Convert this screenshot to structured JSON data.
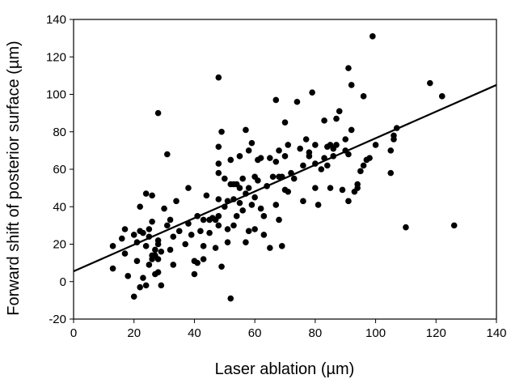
{
  "chart_data": {
    "type": "scatter",
    "title": "",
    "xlabel": "Laser ablation (µm)",
    "ylabel": "Forward shift of posterior surface (µm)",
    "xlim": [
      0,
      140
    ],
    "ylim": [
      -20,
      140
    ],
    "x_ticks": [
      0,
      20,
      40,
      60,
      80,
      100,
      120,
      140
    ],
    "y_ticks": [
      -20,
      0,
      20,
      40,
      60,
      80,
      100,
      120,
      140
    ],
    "grid": false,
    "legend": "none",
    "marker_color": "#000000",
    "trendline": {
      "x": [
        0,
        140
      ],
      "y": [
        5.5,
        105
      ]
    },
    "points": [
      [
        13,
        19
      ],
      [
        13,
        7
      ],
      [
        16,
        23
      ],
      [
        17,
        28
      ],
      [
        17,
        15
      ],
      [
        18,
        3
      ],
      [
        20,
        -8
      ],
      [
        20,
        25
      ],
      [
        21,
        21
      ],
      [
        21,
        11
      ],
      [
        22,
        27
      ],
      [
        22,
        -3
      ],
      [
        22,
        40
      ],
      [
        23,
        26
      ],
      [
        23,
        2
      ],
      [
        24,
        47
      ],
      [
        24,
        -2
      ],
      [
        24,
        19
      ],
      [
        25,
        24
      ],
      [
        25,
        9
      ],
      [
        25,
        28
      ],
      [
        26,
        14
      ],
      [
        26,
        12
      ],
      [
        26,
        32
      ],
      [
        26,
        46
      ],
      [
        27,
        4
      ],
      [
        27,
        17
      ],
      [
        27,
        14
      ],
      [
        28,
        90
      ],
      [
        28,
        5
      ],
      [
        28,
        20
      ],
      [
        28,
        22
      ],
      [
        28,
        12
      ],
      [
        29,
        -2
      ],
      [
        29,
        16
      ],
      [
        30,
        39
      ],
      [
        31,
        68
      ],
      [
        31,
        30
      ],
      [
        32,
        33
      ],
      [
        32,
        17
      ],
      [
        33,
        24
      ],
      [
        33,
        9
      ],
      [
        34,
        43
      ],
      [
        35,
        27
      ],
      [
        37,
        20
      ],
      [
        38,
        50
      ],
      [
        38,
        31
      ],
      [
        39,
        25
      ],
      [
        40,
        4
      ],
      [
        40,
        11
      ],
      [
        41,
        10
      ],
      [
        41,
        35
      ],
      [
        42,
        27
      ],
      [
        43,
        19
      ],
      [
        43,
        33
      ],
      [
        43,
        12
      ],
      [
        44,
        46
      ],
      [
        45,
        33
      ],
      [
        45,
        26
      ],
      [
        46,
        34
      ],
      [
        47,
        33
      ],
      [
        47,
        18
      ],
      [
        48,
        109
      ],
      [
        48,
        72
      ],
      [
        48,
        63
      ],
      [
        48,
        58
      ],
      [
        48,
        44
      ],
      [
        48,
        35
      ],
      [
        48,
        30
      ],
      [
        49,
        80
      ],
      [
        49,
        8
      ],
      [
        50,
        55
      ],
      [
        50,
        40
      ],
      [
        51,
        43
      ],
      [
        51,
        28
      ],
      [
        51,
        21
      ],
      [
        52,
        65
      ],
      [
        52,
        52
      ],
      [
        52,
        -9
      ],
      [
        53,
        52
      ],
      [
        53,
        44
      ],
      [
        53,
        30
      ],
      [
        54,
        52
      ],
      [
        54,
        35
      ],
      [
        55,
        67
      ],
      [
        55,
        50
      ],
      [
        55,
        42
      ],
      [
        56,
        55
      ],
      [
        56,
        38
      ],
      [
        57,
        81
      ],
      [
        57,
        47
      ],
      [
        57,
        21
      ],
      [
        58,
        70
      ],
      [
        58,
        50
      ],
      [
        58,
        27
      ],
      [
        59,
        74
      ],
      [
        59,
        41
      ],
      [
        60,
        56
      ],
      [
        60,
        45
      ],
      [
        60,
        28
      ],
      [
        61,
        65
      ],
      [
        61,
        54
      ],
      [
        62,
        66
      ],
      [
        62,
        39
      ],
      [
        63,
        35
      ],
      [
        63,
        25
      ],
      [
        64,
        51
      ],
      [
        65,
        66
      ],
      [
        65,
        18
      ],
      [
        66,
        56
      ],
      [
        67,
        97
      ],
      [
        67,
        64
      ],
      [
        67,
        41
      ],
      [
        68,
        70
      ],
      [
        68,
        33
      ],
      [
        68,
        56
      ],
      [
        69,
        56
      ],
      [
        69,
        19
      ],
      [
        70,
        85
      ],
      [
        70,
        67
      ],
      [
        70,
        49
      ],
      [
        71,
        73
      ],
      [
        71,
        48
      ],
      [
        72,
        58
      ],
      [
        73,
        55
      ],
      [
        74,
        96
      ],
      [
        75,
        71
      ],
      [
        76,
        62
      ],
      [
        76,
        43
      ],
      [
        77,
        76
      ],
      [
        78,
        69
      ],
      [
        78,
        67
      ],
      [
        79,
        101
      ],
      [
        80,
        63
      ],
      [
        80,
        73
      ],
      [
        80,
        50
      ],
      [
        81,
        41
      ],
      [
        82,
        60
      ],
      [
        83,
        66
      ],
      [
        83,
        86
      ],
      [
        84,
        62
      ],
      [
        84,
        72
      ],
      [
        85,
        73
      ],
      [
        85,
        50
      ],
      [
        86,
        67
      ],
      [
        86,
        71
      ],
      [
        87,
        87
      ],
      [
        87,
        73
      ],
      [
        88,
        91
      ],
      [
        89,
        49
      ],
      [
        90,
        76
      ],
      [
        90,
        70
      ],
      [
        91,
        114
      ],
      [
        91,
        43
      ],
      [
        91,
        68
      ],
      [
        92,
        105
      ],
      [
        92,
        81
      ],
      [
        93,
        48
      ],
      [
        94,
        52
      ],
      [
        94,
        50
      ],
      [
        95,
        59
      ],
      [
        96,
        99
      ],
      [
        96,
        62
      ],
      [
        97,
        65
      ],
      [
        98,
        66
      ],
      [
        99,
        131
      ],
      [
        100,
        73
      ],
      [
        105,
        58
      ],
      [
        105,
        70
      ],
      [
        106,
        78
      ],
      [
        106,
        76
      ],
      [
        107,
        82
      ],
      [
        110,
        29
      ],
      [
        118,
        106
      ],
      [
        122,
        99
      ],
      [
        126,
        30
      ]
    ]
  }
}
